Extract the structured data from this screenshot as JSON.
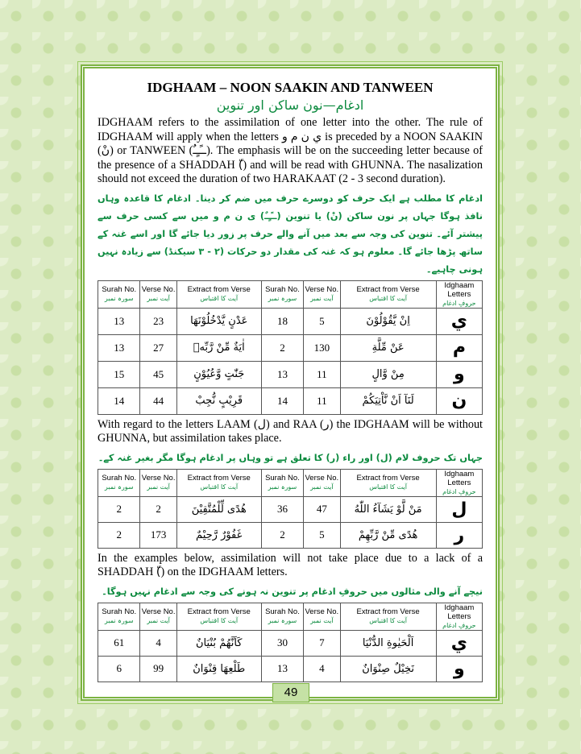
{
  "title": "IDGHAAM – NOON SAAKIN AND TANWEEN",
  "subtitle": "ادغام—نون ساکن اور تنوین",
  "para1": "IDGHAAM refers to the assimilation of one letter into the other. The rule of IDGHAAM will apply when the letters ي ن م و is preceded by a NOON SAAKIN (نْ) or TANWEEN (ــًـٍـٌ). The emphasis will be on the succeeding letter because of the presence of a SHADDAH (ّ) and will be read with GHUNNA. The nasalization should not exceed the duration of two HARAKAAT (2 - 3 second duration).",
  "para1_urdu": "ادغام کا مطلب ہے ایک حرف کو دوسرے حرف میں ضم کر دینا۔ ادغام کا قاعدہ وہاں نافذ ہوگا جہاں پر نون ساکن (نْ) یا تنوین (ــًـٍـٌ) ی ن م و میں سے کسی حرف سے پیشتر آئے۔ تنوین کی وجہ سے بعد میں آنے والے حرف پر زور دیا جائے گا اور اسے غنہ کے ساتھ پڑھا جائے گا۔ معلوم ہو کہ غنہ کی مقدار دو حرکات (۲ - ۳ سیکنڈ) سے زیادہ نہیں ہونی چاہیے۔",
  "table1": {
    "header": [
      {
        "en": "Surah No.",
        "ur": "سورہ نمبر"
      },
      {
        "en": "Verse No.",
        "ur": "آیت نمبر"
      },
      {
        "en": "Extract from Verse",
        "ur": "آیت کا اقتباس"
      },
      {
        "en": "Surah No.",
        "ur": "سورہ نمبر"
      },
      {
        "en": "Verse No.",
        "ur": "آیت نمبر"
      },
      {
        "en": "Extract from Verse",
        "ur": "آیت کا اقتباس"
      },
      {
        "en": "Idghaam Letters",
        "ur": "حروفِ ادغام"
      }
    ],
    "rows": [
      [
        13,
        23,
        "عَدْنٍ يَّدْخُلُوْنَهَا",
        18,
        5,
        "اِنْ يَّقُوْلُوْنَ",
        "ي"
      ],
      [
        13,
        27,
        "اٰيَةٌ مِّنْ رَّبِّهٖ",
        2,
        130,
        "عَنْ مِّلَّةِ",
        "م"
      ],
      [
        15,
        45,
        "جَنّٰتٍ وَّعُيُوْنٍ",
        13,
        11,
        "مِنْ وَّالٍ",
        "و"
      ],
      [
        14,
        44,
        "قَرِيْبٍ نُّجِبْ",
        14,
        11,
        "لَنَآ اَنْ نَّاْتِيَكُمْ",
        "ن"
      ]
    ]
  },
  "para2": "With regard to the letters LAAM (ل) and RAA (ر) the IDGHAAM will be without GHUNNA, but assimilation takes place.",
  "para2_urdu": "جہاں تک حروف لام (ل) اور راء (ر) کا تعلق ہے تو وہاں پر ادغام ہوگا مگر بغیر غنہ کے۔",
  "table2": {
    "header": [
      {
        "en": "Surah No.",
        "ur": "سورہ نمبر"
      },
      {
        "en": "Verse No.",
        "ur": "آیت نمبر"
      },
      {
        "en": "Extract from Verse",
        "ur": "آیت کا اقتباس"
      },
      {
        "en": "Surah No.",
        "ur": "سورہ نمبر"
      },
      {
        "en": "Verse No.",
        "ur": "آیت نمبر"
      },
      {
        "en": "Extract from Verse",
        "ur": "آیت کا اقتباس"
      },
      {
        "en": "Idghaam Letters",
        "ur": "حروفِ ادغام"
      }
    ],
    "rows": [
      [
        2,
        2,
        "هُدًى لِّلْمُتَّقِيْنَ",
        36,
        47,
        "مَنْ لَّوْ يَشَآءُ اللّٰهُ",
        "ل"
      ],
      [
        2,
        173,
        "غَفُوْرٌ رَّحِيْمٌ",
        2,
        5,
        "هُدًى مِّنْ رَّبِّهِمْ",
        "ر"
      ]
    ]
  },
  "para3": "In the examples below, assimilation will not take place due to a lack of a SHADDAH (ّ) on the IDGHAAM letters.",
  "para3_urdu": "نیچے آنے والی مثالوں میں حروفِ ادغام پر تنوین نہ ہونے کی وجہ سے ادغام نہیں ہوگا۔",
  "table3": {
    "header": [
      {
        "en": "Surah No.",
        "ur": "سورہ نمبر"
      },
      {
        "en": "Verse No.",
        "ur": "آیت نمبر"
      },
      {
        "en": "Extract from Verse",
        "ur": "آیت کا اقتباس"
      },
      {
        "en": "Surah No.",
        "ur": "سورہ نمبر"
      },
      {
        "en": "Verse No.",
        "ur": "آیت نمبر"
      },
      {
        "en": "Extract from Verse",
        "ur": "آیت کا اقتباس"
      },
      {
        "en": "Idghaam Letters",
        "ur": "حروفِ ادغام"
      }
    ],
    "rows": [
      [
        61,
        4,
        "كَاَنَّهُمْ بُنْيَانٌ",
        30,
        7,
        "اَلْحَيٰوةِ الدُّنْيَا",
        "ي"
      ],
      [
        6,
        99,
        "طَلْعِهَا قِنْوَانٌ",
        13,
        4,
        "نَخِيْلٌ صِنْوَانٌ",
        "و"
      ]
    ]
  },
  "page_number": "49"
}
